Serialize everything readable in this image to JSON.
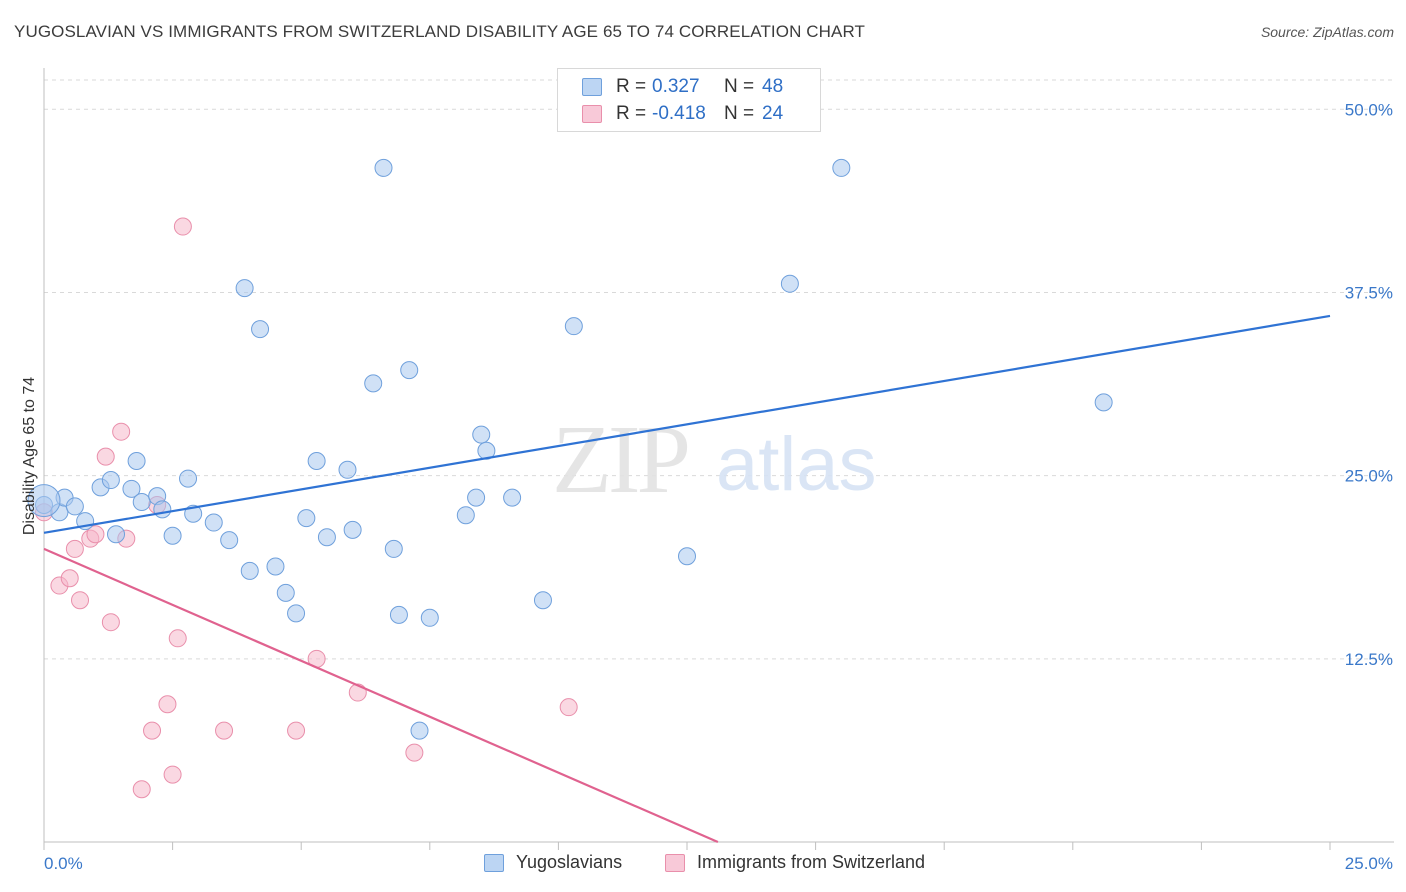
{
  "title": "YUGOSLAVIAN VS IMMIGRANTS FROM SWITZERLAND DISABILITY AGE 65 TO 74 CORRELATION CHART",
  "source": "Source: ZipAtlas.com",
  "watermark": {
    "zip": "ZIP",
    "atlas": "atlas"
  },
  "legend": {
    "series1": {
      "r_label": "R =",
      "r_value": "0.327",
      "n_label": "N =",
      "n_value": "48"
    },
    "series2": {
      "r_label": "R =",
      "r_value": "-0.418",
      "n_label": "N =",
      "n_value": "24"
    }
  },
  "bottom_legend": {
    "series1": "Yugoslavians",
    "series2": "Immigrants from Switzerland"
  },
  "colors": {
    "blue_fill": "#a9c9ef",
    "blue_stroke": "#6fa0dc",
    "blue_line": "#2f73d4",
    "pink_fill": "#f5b8cb",
    "pink_stroke": "#e98fab",
    "pink_line": "#e0628f",
    "tick_text": "#3a78c9",
    "grid": "#d9d9d9"
  },
  "chart_data": {
    "type": "scatter",
    "title": "YUGOSLAVIAN VS IMMIGRANTS FROM SWITZERLAND DISABILITY AGE 65 TO 74 CORRELATION CHART",
    "xlabel": "",
    "ylabel": "Disability Age 65 to 74",
    "xlim": [
      0,
      25
    ],
    "ylim": [
      0,
      52
    ],
    "x_tick_labels": [
      "0.0%",
      "25.0%"
    ],
    "y_ticks": [
      12.5,
      25.0,
      37.5,
      50.0
    ],
    "y_tick_labels": [
      "12.5%",
      "25.0%",
      "37.5%",
      "50.0%"
    ],
    "grid": true,
    "series": [
      {
        "name": "Yugoslavians",
        "points": [
          [
            0.0,
            23.0
          ],
          [
            0.3,
            22.5
          ],
          [
            0.4,
            23.5
          ],
          [
            0.6,
            22.9
          ],
          [
            0.8,
            21.9
          ],
          [
            1.1,
            24.2
          ],
          [
            1.3,
            24.7
          ],
          [
            1.4,
            21.0
          ],
          [
            1.7,
            24.1
          ],
          [
            1.8,
            26.0
          ],
          [
            1.9,
            23.2
          ],
          [
            2.2,
            23.6
          ],
          [
            2.3,
            22.7
          ],
          [
            2.5,
            20.9
          ],
          [
            2.8,
            24.8
          ],
          [
            2.9,
            22.4
          ],
          [
            3.3,
            21.8
          ],
          [
            3.6,
            20.6
          ],
          [
            3.9,
            37.8
          ],
          [
            4.0,
            18.5
          ],
          [
            4.2,
            35.0
          ],
          [
            4.5,
            18.8
          ],
          [
            4.7,
            17.0
          ],
          [
            4.9,
            15.6
          ],
          [
            5.1,
            22.1
          ],
          [
            5.3,
            26.0
          ],
          [
            5.5,
            20.8
          ],
          [
            5.9,
            25.4
          ],
          [
            6.0,
            21.3
          ],
          [
            6.4,
            31.3
          ],
          [
            6.6,
            46.0
          ],
          [
            6.8,
            20.0
          ],
          [
            6.9,
            15.5
          ],
          [
            7.1,
            32.2
          ],
          [
            7.5,
            15.3
          ],
          [
            8.2,
            22.3
          ],
          [
            8.4,
            23.5
          ],
          [
            8.5,
            27.8
          ],
          [
            8.6,
            26.7
          ],
          [
            9.1,
            23.5
          ],
          [
            9.7,
            16.5
          ],
          [
            10.3,
            35.2
          ],
          [
            12.5,
            19.5
          ],
          [
            14.5,
            38.1
          ],
          [
            15.5,
            46.0
          ],
          [
            20.6,
            30.0
          ],
          [
            7.3,
            7.6
          ],
          [
            0.0,
            23.3
          ]
        ]
      },
      {
        "name": "Immigrants from Switzerland",
        "points": [
          [
            0.0,
            22.5
          ],
          [
            0.3,
            17.5
          ],
          [
            0.5,
            18.0
          ],
          [
            0.6,
            20.0
          ],
          [
            0.7,
            16.5
          ],
          [
            0.9,
            20.7
          ],
          [
            1.0,
            21.0
          ],
          [
            1.2,
            26.3
          ],
          [
            1.3,
            15.0
          ],
          [
            1.5,
            28.0
          ],
          [
            1.6,
            20.7
          ],
          [
            1.9,
            3.6
          ],
          [
            2.1,
            7.6
          ],
          [
            2.2,
            23.0
          ],
          [
            2.4,
            9.4
          ],
          [
            2.5,
            4.6
          ],
          [
            2.6,
            13.9
          ],
          [
            2.7,
            42.0
          ],
          [
            3.5,
            7.6
          ],
          [
            4.9,
            7.6
          ],
          [
            5.3,
            12.5
          ],
          [
            6.1,
            10.2
          ],
          [
            7.2,
            6.1
          ],
          [
            10.2,
            9.2
          ]
        ]
      }
    ],
    "trendlines": [
      {
        "name": "Yugoslavians",
        "x": [
          0,
          25
        ],
        "y": [
          21.1,
          35.9
        ]
      },
      {
        "name": "Immigrants from Switzerland",
        "x": [
          0,
          13.1
        ],
        "y": [
          20.0,
          0
        ]
      }
    ]
  }
}
